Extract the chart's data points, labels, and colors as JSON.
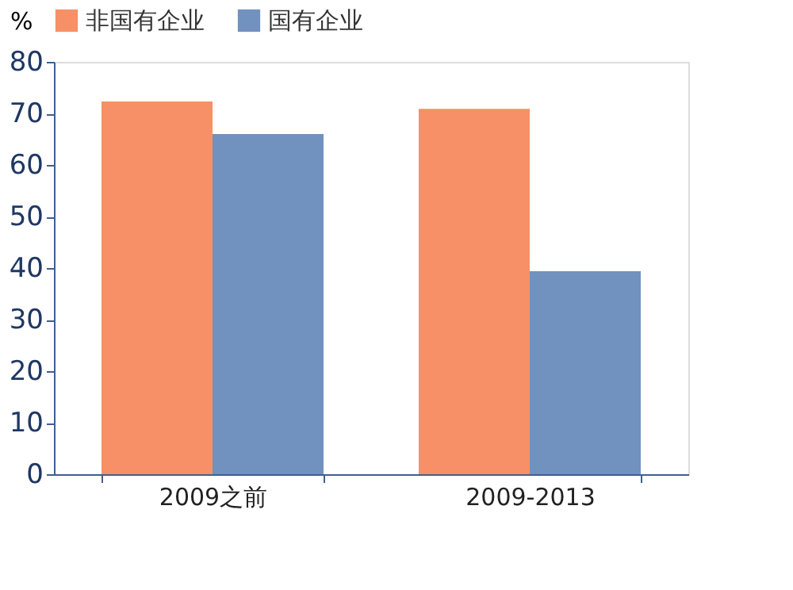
{
  "chart_data": {
    "type": "bar",
    "ylabel": "%",
    "categories": [
      "2009之前",
      "2009-2013"
    ],
    "series": [
      {
        "name": "非国有企业",
        "color": "#f79066",
        "values": [
          72.3,
          70.9
        ]
      },
      {
        "name": "国有企业",
        "color": "#7192bf",
        "values": [
          66.0,
          39.4
        ]
      }
    ],
    "ylim": [
      0,
      80
    ],
    "yticks": [
      0,
      10,
      20,
      30,
      40,
      50,
      60,
      70,
      80
    ],
    "grid": false,
    "legend": "top"
  }
}
